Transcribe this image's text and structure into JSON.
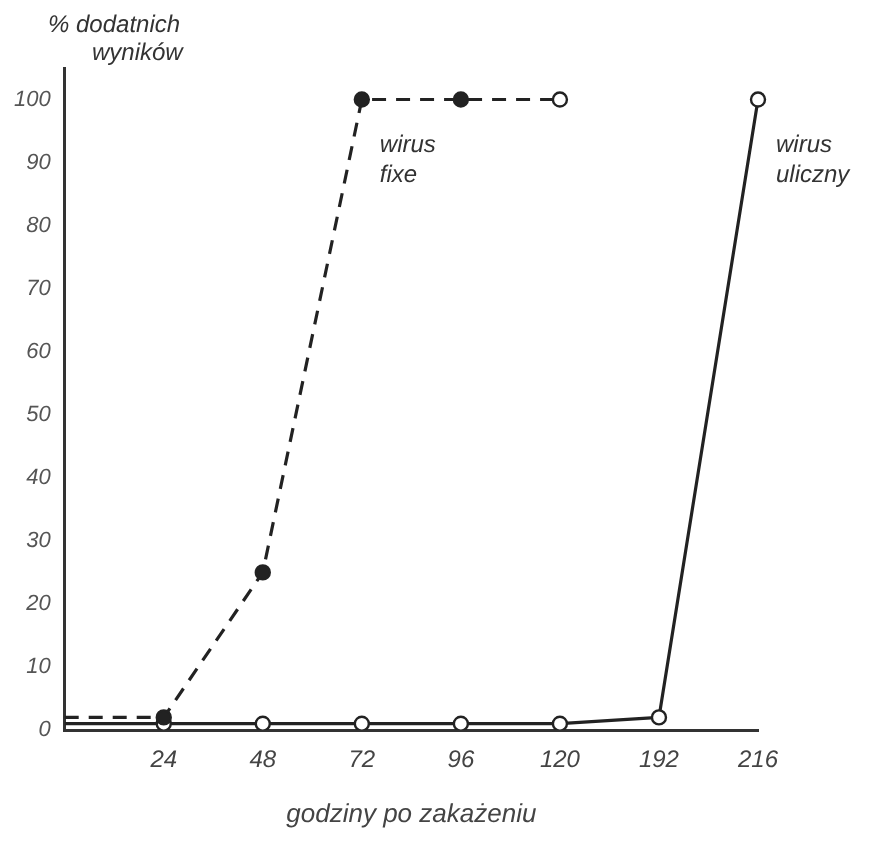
{
  "chart_data": {
    "type": "line",
    "ylabel": "% dodatnich wyników",
    "xlabel": "godziny po zakażeniu",
    "categories": [
      null,
      "24",
      "48",
      "72",
      "96",
      "120",
      "192",
      "216"
    ],
    "series": [
      {
        "name": "wirus fixe",
        "color": "#222222",
        "values": [
          2,
          2,
          25,
          100,
          100,
          100,
          null,
          null
        ],
        "line_style": "dashed",
        "marker": "circle"
      },
      {
        "name": "wirus uliczny",
        "color": "#222222",
        "values": [
          1,
          1,
          1,
          1,
          1,
          1,
          2,
          100
        ],
        "line_style": "solid",
        "marker": "circle"
      }
    ],
    "ylim": [
      0,
      105
    ],
    "yticks": [
      0,
      10,
      20,
      30,
      40,
      50,
      60,
      70,
      80,
      90,
      100
    ],
    "grid": false,
    "legend": false
  }
}
